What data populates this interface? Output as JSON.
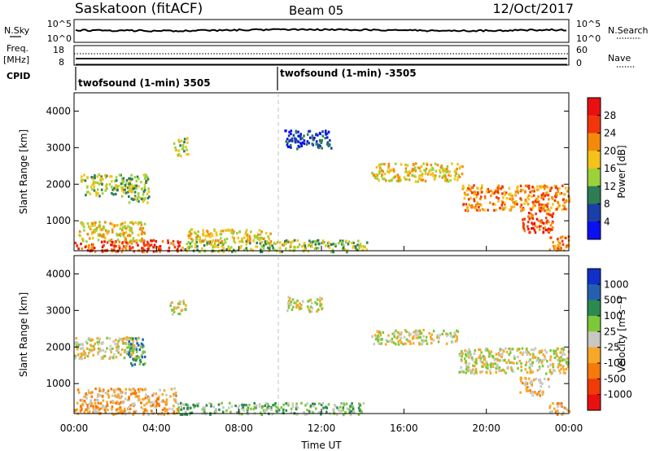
{
  "header": {
    "station": "Saskatoon (fitACF)",
    "beam": "Beam 05",
    "date": "12/Oct/2017"
  },
  "strip_noise": {
    "left_label": "N.Sky",
    "left_ticks": [
      "10^5",
      "10^0"
    ],
    "right_label": "N.Search",
    "right_ticks": [
      "10^5",
      "10^0"
    ]
  },
  "strip_freq": {
    "left_label_1": "Freq.",
    "left_label_2": "[MHz]",
    "left_ticks": [
      "18",
      "8"
    ],
    "right_label": "Nave",
    "right_ticks": [
      "60",
      "0"
    ]
  },
  "cpid": {
    "label": "CPID",
    "mode_1": "twofsound (1-min) 3505",
    "mode_2": "twofsound (1-min) -3505"
  },
  "chart_data": [
    {
      "type": "heatmap",
      "name": "power",
      "ylabel": "Slant Range [km]",
      "xlim": [
        0,
        24
      ],
      "ylim": [
        180,
        4500
      ],
      "y_ticks": [
        "1000",
        "2000",
        "3000",
        "4000"
      ],
      "colorbar_label": "Power [dB]",
      "colorbar_ticks": [
        "4",
        "8",
        "12",
        "16",
        "20",
        "24",
        "28"
      ],
      "colorbar_colors": [
        "#0a10f0",
        "#1a3fa8",
        "#2e7d55",
        "#9cd13a",
        "#f4c21a",
        "#f58a0a",
        "#f2360b",
        "#e81010"
      ],
      "features": [
        {
          "t": [
            0.3,
            2.8
          ],
          "r": [
            1700,
            2300
          ],
          "lvl": 3
        },
        {
          "t": [
            2.6,
            3.6
          ],
          "r": [
            1500,
            2300
          ],
          "lvl": 3
        },
        {
          "t": [
            4.8,
            5.5
          ],
          "r": [
            2800,
            3300
          ],
          "lvl": 3
        },
        {
          "t": [
            10.2,
            12.5
          ],
          "r": [
            3000,
            3500
          ],
          "lvl": 1
        },
        {
          "t": [
            14.4,
            18.8
          ],
          "r": [
            2100,
            2600
          ],
          "lvl": 4
        },
        {
          "t": [
            18.8,
            24.0
          ],
          "r": [
            1300,
            2000
          ],
          "lvl": 5
        },
        {
          "t": [
            21.6,
            23.2
          ],
          "r": [
            700,
            1300
          ],
          "lvl": 6
        },
        {
          "t": [
            0.0,
            5.2
          ],
          "r": [
            180,
            500
          ],
          "lvl": 6
        },
        {
          "t": [
            5.2,
            14.2
          ],
          "r": [
            180,
            500
          ],
          "lvl": 3
        },
        {
          "t": [
            0.2,
            3.4
          ],
          "r": [
            450,
            1000
          ],
          "lvl": 4
        },
        {
          "t": [
            5.5,
            9.5
          ],
          "r": [
            450,
            800
          ],
          "lvl": 4
        },
        {
          "t": [
            23.0,
            24.0
          ],
          "r": [
            180,
            600
          ],
          "lvl": 5
        }
      ]
    },
    {
      "type": "heatmap",
      "name": "velocity",
      "xlabel": "Time UT",
      "ylabel": "Slant Range [km]",
      "xlim": [
        0,
        24
      ],
      "ylim": [
        180,
        4500
      ],
      "x_ticks": [
        "00:00",
        "04:00",
        "08:00",
        "12:00",
        "16:00",
        "20:00",
        "00:00"
      ],
      "y_ticks": [
        "1000",
        "2000",
        "3000",
        "4000"
      ],
      "colorbar_label": "Velocity [m s⁻¹]",
      "colorbar_ticks": [
        "1000",
        "500",
        "100",
        "25",
        "-25",
        "-100",
        "-500",
        "-1000"
      ],
      "colorbar_colors": [
        "#1030c8",
        "#2560b0",
        "#2c8a50",
        "#7cc83a",
        "#c8c8c0",
        "#f7a828",
        "#f57a0a",
        "#f03a0a",
        "#e81010"
      ],
      "features": [
        {
          "t": [
            0.0,
            3.0
          ],
          "r": [
            1700,
            2300
          ],
          "lvl": 4
        },
        {
          "t": [
            2.6,
            3.4
          ],
          "r": [
            1500,
            2300
          ],
          "lvl": 2
        },
        {
          "t": [
            4.6,
            5.4
          ],
          "r": [
            2900,
            3300
          ],
          "lvl": 4
        },
        {
          "t": [
            10.3,
            12.0
          ],
          "r": [
            3000,
            3400
          ],
          "lvl": 4
        },
        {
          "t": [
            14.4,
            18.6
          ],
          "r": [
            2100,
            2500
          ],
          "lvl": 4
        },
        {
          "t": [
            18.6,
            24.0
          ],
          "r": [
            1300,
            2000
          ],
          "lvl": 4
        },
        {
          "t": [
            21.6,
            23.0
          ],
          "r": [
            700,
            1200
          ],
          "lvl": 5
        },
        {
          "t": [
            0.0,
            5.0
          ],
          "r": [
            180,
            900
          ],
          "lvl": 5
        },
        {
          "t": [
            5.0,
            14.0
          ],
          "r": [
            180,
            500
          ],
          "lvl": 3
        },
        {
          "t": [
            23.0,
            24.0
          ],
          "r": [
            180,
            500
          ],
          "lvl": 5
        }
      ]
    }
  ]
}
